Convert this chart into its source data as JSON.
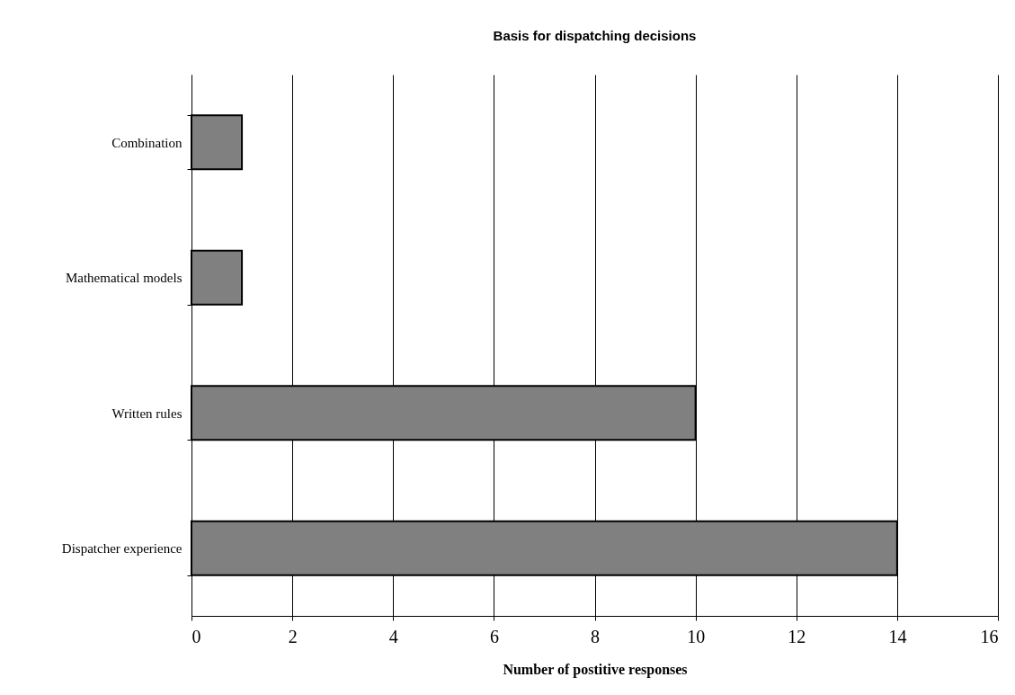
{
  "chart_data": {
    "type": "bar",
    "orientation": "horizontal",
    "title": "Basis for dispatching decisions",
    "xlabel": "Number of postitive responses",
    "categories": [
      "Combination",
      "Mathematical models",
      "Written rules",
      "Dispatcher experience"
    ],
    "values": [
      1,
      1,
      10,
      14
    ],
    "color": "#808080",
    "xlim": [
      0,
      16
    ],
    "xticks": [
      0,
      2,
      4,
      6,
      8,
      10,
      12,
      14,
      16
    ],
    "grid": "x"
  }
}
